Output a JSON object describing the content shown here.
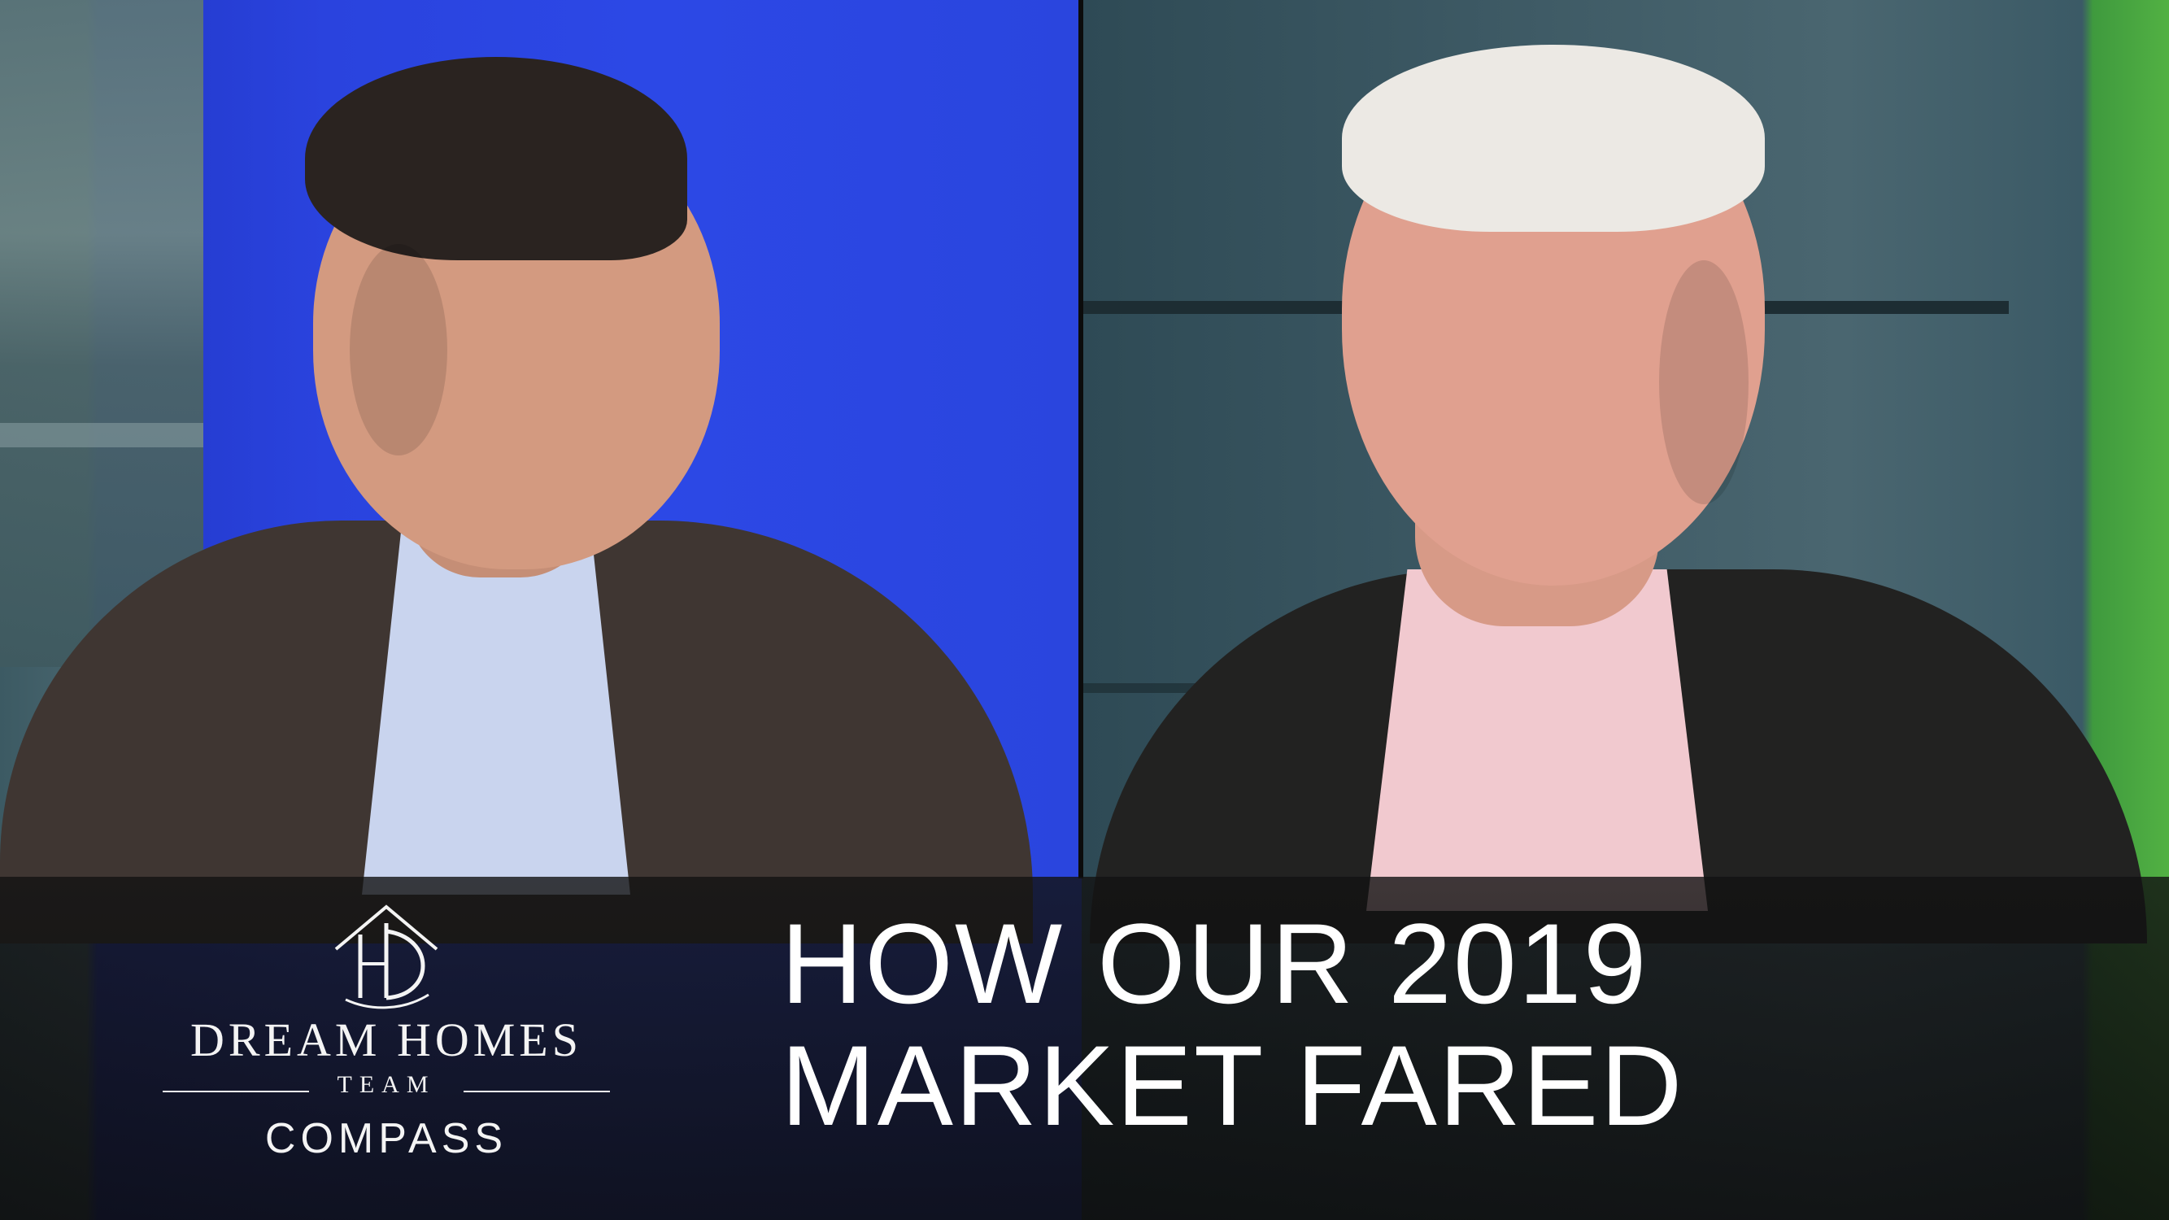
{
  "logo": {
    "monogram": "HD",
    "name": "DREAM HOMES",
    "team": "TEAM",
    "brokerage": "COMPASS"
  },
  "headline": {
    "line1": "HOW OUR 2019",
    "line2": "MARKET FARED"
  },
  "colors": {
    "banner": "#121212",
    "text": "#ffffff",
    "left_backdrop": "#2a45de",
    "right_backdrop": "#3a5661"
  }
}
